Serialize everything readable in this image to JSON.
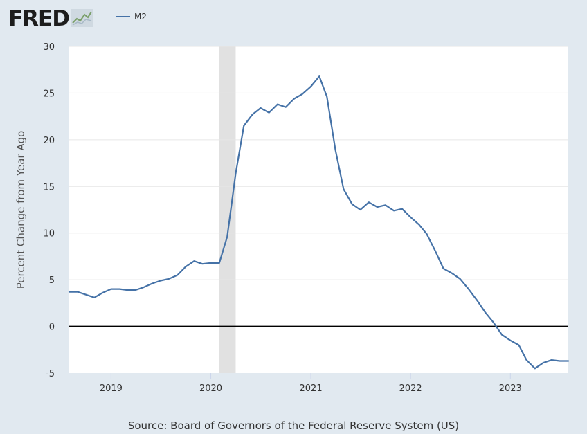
{
  "brand": {
    "logo_text": "FRED",
    "logo_icon": "line-chart-icon"
  },
  "colors": {
    "series": "#4572a7",
    "background": "#e1e9f0",
    "recession": "#e1e1e1",
    "grid": "#e6e6e6",
    "zero_line": "#000000"
  },
  "source_text": "Source: Board of Governors of the Federal Reserve System (US)",
  "chart_data": {
    "type": "line",
    "title": "",
    "ylabel": "Percent Change from Year Ago",
    "xlabel": "",
    "ylim": [
      -5,
      30
    ],
    "xlim": [
      "2018-08-01",
      "2023-08-01"
    ],
    "y_ticks": [
      -5,
      0,
      5,
      10,
      15,
      20,
      25,
      30
    ],
    "x_ticks": [
      {
        "label": "2019",
        "date": "2019-01-01"
      },
      {
        "label": "2020",
        "date": "2020-01-01"
      },
      {
        "label": "2021",
        "date": "2021-01-01"
      },
      {
        "label": "2022",
        "date": "2022-01-01"
      },
      {
        "label": "2023",
        "date": "2023-01-01"
      }
    ],
    "grid": true,
    "legend_position": "top-left",
    "recession_band": {
      "start": "2020-02-01",
      "end": "2020-04-01"
    },
    "series": [
      {
        "name": "M2",
        "points": [
          [
            "2018-08-01",
            3.7
          ],
          [
            "2018-09-01",
            3.7
          ],
          [
            "2018-10-01",
            3.4
          ],
          [
            "2018-11-01",
            3.1
          ],
          [
            "2018-12-01",
            3.6
          ],
          [
            "2019-01-01",
            4.0
          ],
          [
            "2019-02-01",
            4.0
          ],
          [
            "2019-03-01",
            3.9
          ],
          [
            "2019-04-01",
            3.9
          ],
          [
            "2019-05-01",
            4.2
          ],
          [
            "2019-06-01",
            4.6
          ],
          [
            "2019-07-01",
            4.9
          ],
          [
            "2019-08-01",
            5.1
          ],
          [
            "2019-09-01",
            5.5
          ],
          [
            "2019-10-01",
            6.4
          ],
          [
            "2019-11-01",
            7.0
          ],
          [
            "2019-12-01",
            6.7
          ],
          [
            "2020-01-01",
            6.8
          ],
          [
            "2020-02-01",
            6.8
          ],
          [
            "2020-03-01",
            9.6
          ],
          [
            "2020-04-01",
            16.4
          ],
          [
            "2020-05-01",
            21.5
          ],
          [
            "2020-06-01",
            22.7
          ],
          [
            "2020-07-01",
            23.4
          ],
          [
            "2020-08-01",
            22.9
          ],
          [
            "2020-09-01",
            23.8
          ],
          [
            "2020-10-01",
            23.5
          ],
          [
            "2020-11-01",
            24.4
          ],
          [
            "2020-12-01",
            24.9
          ],
          [
            "2021-01-01",
            25.7
          ],
          [
            "2021-02-01",
            26.8
          ],
          [
            "2021-03-01",
            24.6
          ],
          [
            "2021-04-01",
            18.9
          ],
          [
            "2021-05-01",
            14.7
          ],
          [
            "2021-06-01",
            13.1
          ],
          [
            "2021-07-01",
            12.5
          ],
          [
            "2021-08-01",
            13.3
          ],
          [
            "2021-09-01",
            12.8
          ],
          [
            "2021-10-01",
            13.0
          ],
          [
            "2021-11-01",
            12.4
          ],
          [
            "2021-12-01",
            12.6
          ],
          [
            "2022-01-01",
            11.7
          ],
          [
            "2022-02-01",
            10.9
          ],
          [
            "2022-03-01",
            9.9
          ],
          [
            "2022-04-01",
            8.1
          ],
          [
            "2022-05-01",
            6.2
          ],
          [
            "2022-06-01",
            5.7
          ],
          [
            "2022-07-01",
            5.1
          ],
          [
            "2022-08-01",
            4.0
          ],
          [
            "2022-09-01",
            2.8
          ],
          [
            "2022-10-01",
            1.5
          ],
          [
            "2022-11-01",
            0.4
          ],
          [
            "2022-12-01",
            -0.9
          ],
          [
            "2023-01-01",
            -1.5
          ],
          [
            "2023-02-01",
            -2.0
          ],
          [
            "2023-03-01",
            -3.6
          ],
          [
            "2023-04-01",
            -4.5
          ],
          [
            "2023-05-01",
            -3.9
          ],
          [
            "2023-06-01",
            -3.6
          ],
          [
            "2023-07-01",
            -3.7
          ],
          [
            "2023-08-01",
            -3.7
          ]
        ]
      }
    ]
  }
}
